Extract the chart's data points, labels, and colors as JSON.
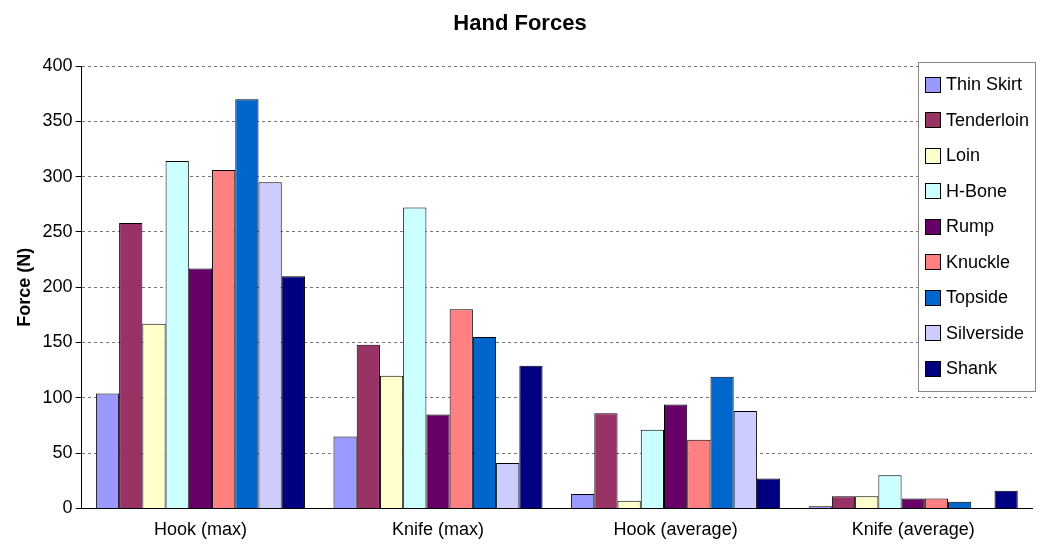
{
  "chart_data": {
    "type": "bar",
    "title": "Hand Forces",
    "ylabel": "Force (N)",
    "categories": [
      "Hook (max)",
      "Knife (max)",
      "Hook (average)",
      "Knife (average)"
    ],
    "series": [
      {
        "name": "Thin Skirt",
        "color": "#9999ff",
        "values": [
          104,
          65,
          13,
          2
        ]
      },
      {
        "name": "Tenderloin",
        "color": "#993366",
        "values": [
          258,
          148,
          86,
          11
        ]
      },
      {
        "name": "Loin",
        "color": "#ffffcc",
        "values": [
          167,
          120,
          7,
          11
        ]
      },
      {
        "name": "H-Bone",
        "color": "#ccffff",
        "values": [
          314,
          272,
          71,
          30
        ]
      },
      {
        "name": "Rump",
        "color": "#660066",
        "values": [
          217,
          85,
          94,
          9
        ]
      },
      {
        "name": "Knuckle",
        "color": "#ff8080",
        "values": [
          306,
          180,
          62,
          9
        ]
      },
      {
        "name": "Topside",
        "color": "#0066cc",
        "values": [
          370,
          155,
          119,
          6
        ]
      },
      {
        "name": "Silverside",
        "color": "#ccccff",
        "values": [
          295,
          41,
          88,
          0
        ]
      },
      {
        "name": "Shank",
        "color": "#000080",
        "values": [
          210,
          129,
          27,
          16
        ]
      }
    ],
    "ylim": [
      0,
      400
    ],
    "yticks": [
      0,
      50,
      100,
      150,
      200,
      250,
      300,
      350,
      400
    ],
    "grid": "y",
    "legend": "top right"
  }
}
